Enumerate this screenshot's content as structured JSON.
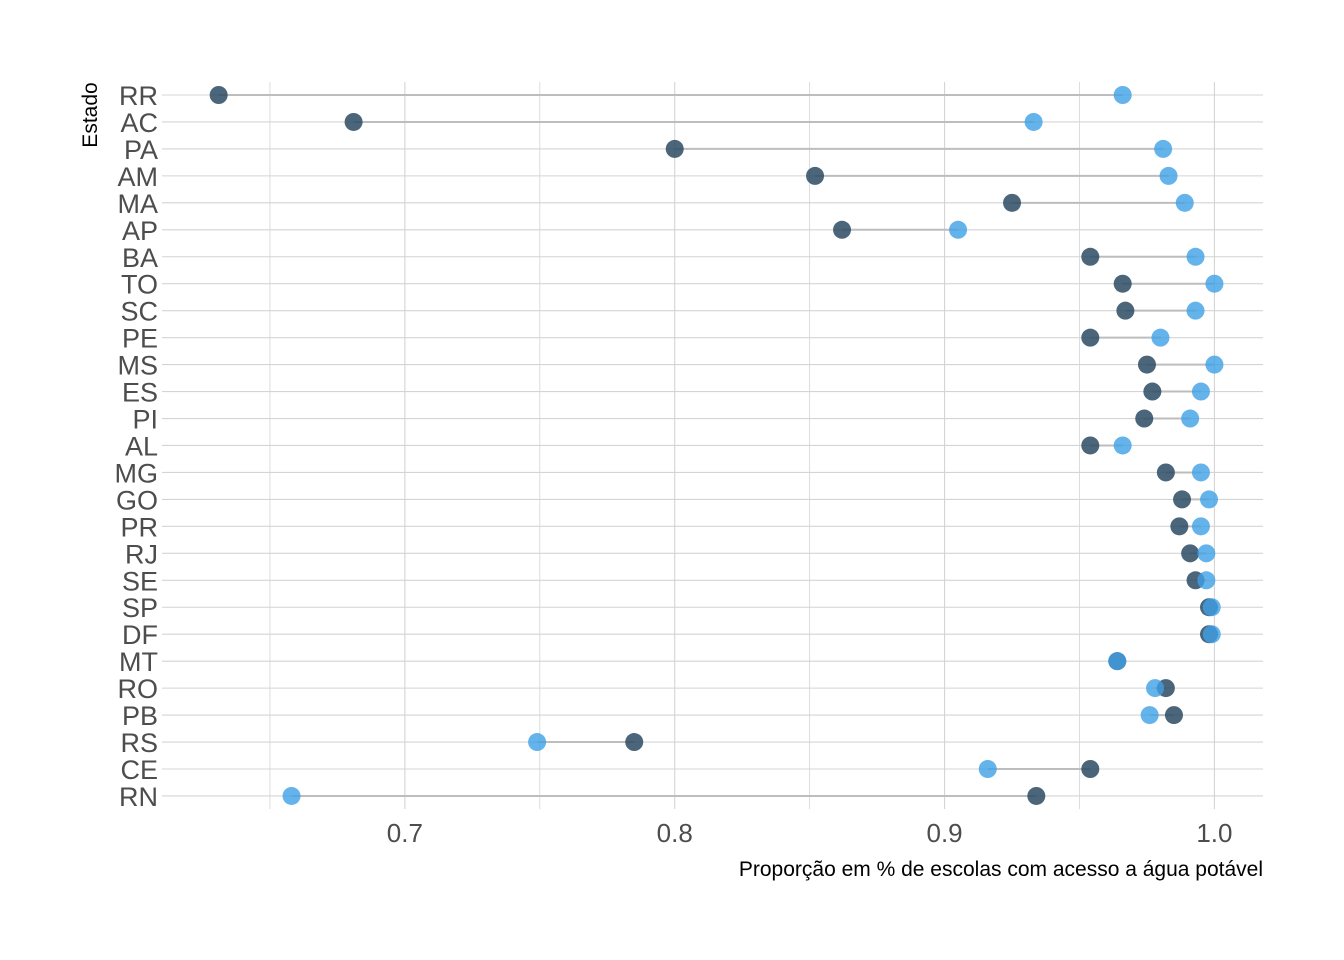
{
  "chart_data": {
    "type": "dumbbell",
    "xlabel": "Proporção em % de escolas com acesso a água potável",
    "ylabel": "Estado",
    "xlim": [
      0.61,
      1.018
    ],
    "x_ticks": [
      0.7,
      0.8,
      0.9,
      1.0
    ],
    "x_tick_labels": [
      "0.7",
      "0.8",
      "0.9",
      "1.0"
    ],
    "grid": true,
    "legend": "none",
    "colors": {
      "dark": "#2c4a63",
      "light": "#3fa0e6",
      "segment": "#bdbdbd",
      "grid": "#d4d4d4"
    },
    "categories": [
      "RR",
      "AC",
      "PA",
      "AM",
      "MA",
      "AP",
      "BA",
      "TO",
      "SC",
      "PE",
      "MS",
      "ES",
      "PI",
      "AL",
      "MG",
      "GO",
      "PR",
      "RJ",
      "SE",
      "SP",
      "DF",
      "MT",
      "RO",
      "PB",
      "RS",
      "CE",
      "RN"
    ],
    "series": [
      {
        "color_key": "dark",
        "values": [
          0.631,
          0.681,
          0.8,
          0.852,
          0.925,
          0.862,
          0.954,
          0.966,
          0.967,
          0.954,
          0.975,
          0.977,
          0.974,
          0.954,
          0.982,
          0.988,
          0.987,
          0.991,
          0.993,
          0.998,
          0.998,
          0.964,
          0.982,
          0.985,
          0.785,
          0.954,
          0.934
        ]
      },
      {
        "color_key": "light",
        "values": [
          0.966,
          0.933,
          0.981,
          0.983,
          0.989,
          0.905,
          0.993,
          1.0,
          0.993,
          0.98,
          1.0,
          0.995,
          0.991,
          0.966,
          0.995,
          0.998,
          0.995,
          0.997,
          0.997,
          0.999,
          0.999,
          0.964,
          0.978,
          0.976,
          0.749,
          0.916,
          0.658
        ]
      }
    ]
  }
}
